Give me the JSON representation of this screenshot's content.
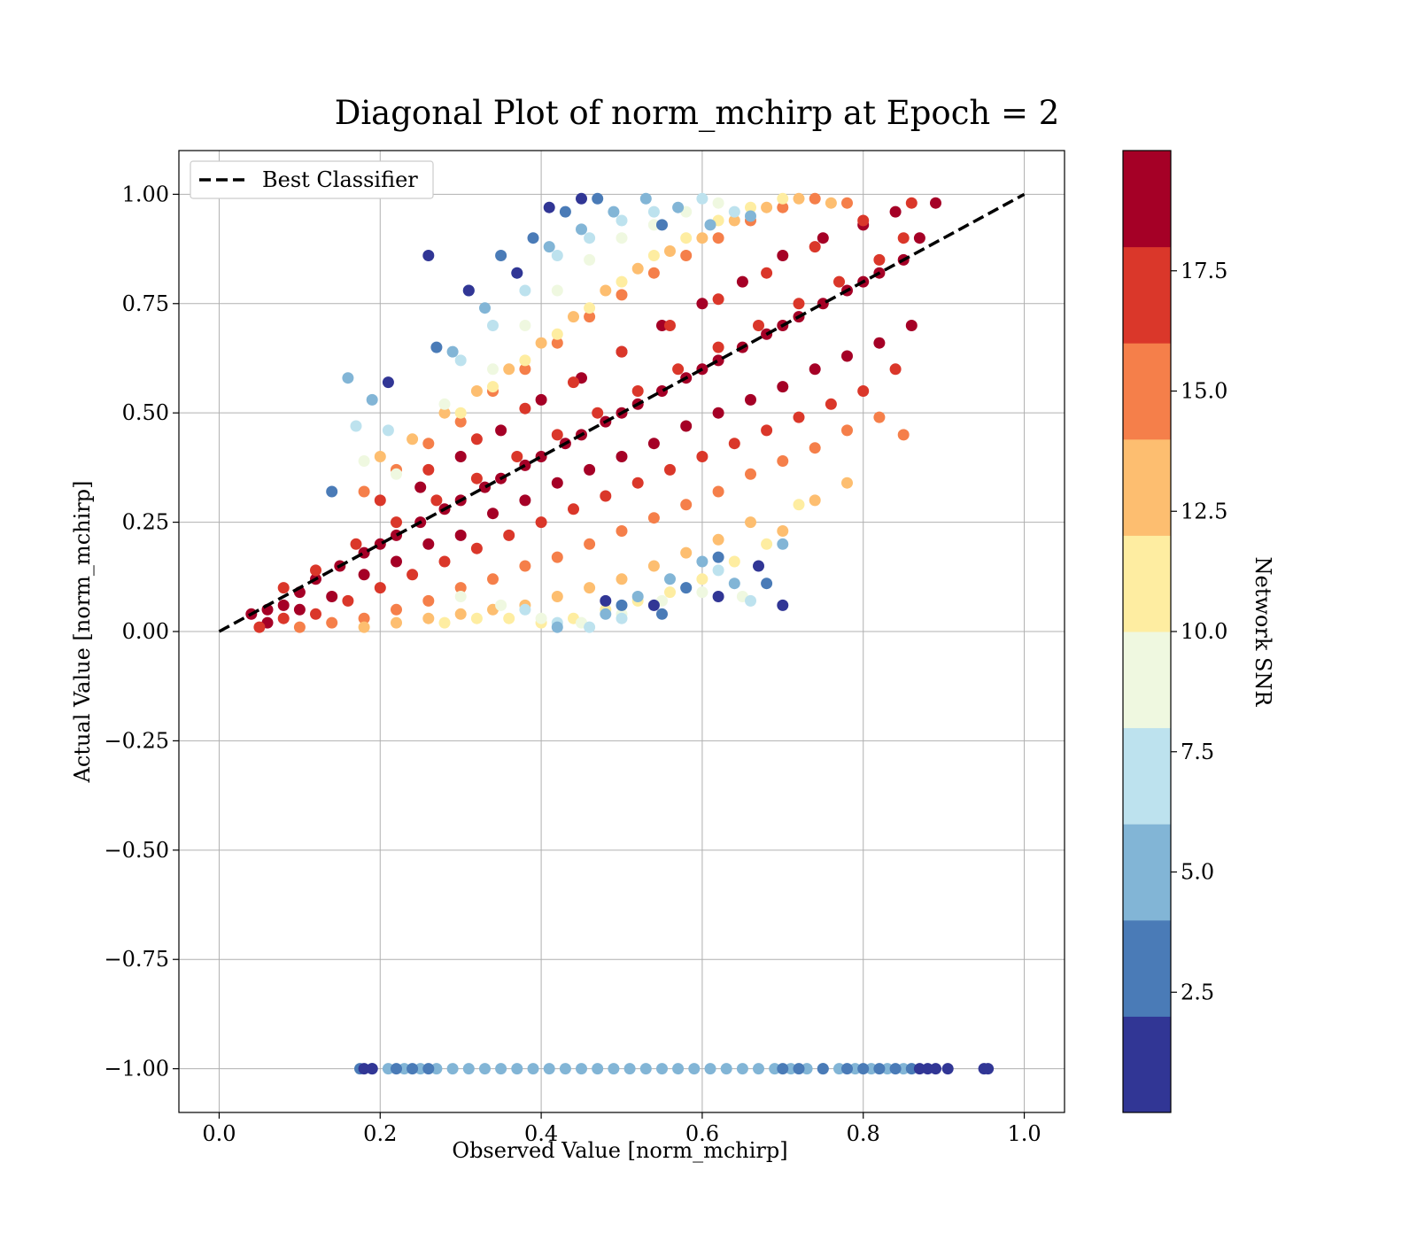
{
  "chart_data": {
    "type": "scatter",
    "title": "Diagonal Plot of norm_mchirp at Epoch = 2",
    "xlabel": "Observed Value [norm_mchirp]",
    "ylabel": "Actual Value [norm_mchirp]",
    "xlim": [
      -0.05,
      1.05
    ],
    "ylim": [
      -1.1,
      1.1
    ],
    "grid": true,
    "x_ticks": [
      0.0,
      0.2,
      0.4,
      0.6,
      0.8,
      1.0
    ],
    "x_tick_labels": [
      "0.0",
      "0.2",
      "0.4",
      "0.6",
      "0.8",
      "1.0"
    ],
    "y_ticks": [
      1.0,
      0.75,
      0.5,
      0.25,
      0.0,
      -0.25,
      -0.5,
      -0.75,
      -1.0
    ],
    "y_tick_labels": [
      "1.00",
      "0.75",
      "0.50",
      "0.25",
      "0.00",
      "−0.25",
      "−0.50",
      "−0.75",
      "−1.00"
    ],
    "legend": {
      "placement": "upper-left",
      "entries": [
        {
          "label": "Best Classifier",
          "style": "dashed",
          "color": "#000000"
        }
      ]
    },
    "reference_line": {
      "name": "Best Classifier",
      "x": [
        0.0,
        1.0
      ],
      "y": [
        0.0,
        1.0
      ],
      "style": "dashed",
      "color": "#000000"
    },
    "colorbar": {
      "label": "Network SNR",
      "range": [
        0.0,
        20.0
      ],
      "ticks": [
        2.5,
        5.0,
        7.5,
        10.0,
        12.5,
        15.0,
        17.5
      ],
      "tick_labels": [
        "2.5",
        "5.0",
        "7.5",
        "10.0",
        "12.5",
        "15.0",
        "17.5"
      ],
      "bins": [
        {
          "from": 0.0,
          "to": 2.0,
          "color": "#313695"
        },
        {
          "from": 2.0,
          "to": 4.0,
          "color": "#4a7bb7"
        },
        {
          "from": 4.0,
          "to": 6.0,
          "color": "#82b5d6"
        },
        {
          "from": 6.0,
          "to": 8.0,
          "color": "#bde2ee"
        },
        {
          "from": 8.0,
          "to": 10.0,
          "color": "#eff8e0"
        },
        {
          "from": 10.0,
          "to": 12.0,
          "color": "#feeda1"
        },
        {
          "from": 12.0,
          "to": 14.0,
          "color": "#fdbe70"
        },
        {
          "from": 14.0,
          "to": 16.0,
          "color": "#f57f4a"
        },
        {
          "from": 16.0,
          "to": 18.0,
          "color": "#da372a"
        },
        {
          "from": 18.0,
          "to": 20.0,
          "color": "#a50026"
        }
      ]
    },
    "series": [
      {
        "x": [
          0.04,
          0.06,
          0.08,
          0.1,
          0.12,
          0.15,
          0.18,
          0.2,
          0.22,
          0.25,
          0.28,
          0.3,
          0.33,
          0.35,
          0.38,
          0.4,
          0.43,
          0.45,
          0.48,
          0.5,
          0.52,
          0.55,
          0.58,
          0.6,
          0.62,
          0.65,
          0.68,
          0.7,
          0.72,
          0.75,
          0.78,
          0.8,
          0.82,
          0.85,
          0.87,
          0.89,
          0.06,
          0.1,
          0.14,
          0.18,
          0.22,
          0.26,
          0.3,
          0.34,
          0.38,
          0.42,
          0.46,
          0.5,
          0.54,
          0.58,
          0.62,
          0.66,
          0.7,
          0.74,
          0.78,
          0.82,
          0.86,
          0.25,
          0.3,
          0.35,
          0.4,
          0.45,
          0.5,
          0.55,
          0.6,
          0.65,
          0.7,
          0.75,
          0.8,
          0.84
        ],
        "y": [
          0.04,
          0.05,
          0.06,
          0.09,
          0.12,
          0.15,
          0.18,
          0.2,
          0.22,
          0.25,
          0.28,
          0.3,
          0.33,
          0.35,
          0.38,
          0.4,
          0.43,
          0.45,
          0.48,
          0.5,
          0.52,
          0.55,
          0.58,
          0.6,
          0.62,
          0.65,
          0.68,
          0.7,
          0.72,
          0.75,
          0.78,
          0.8,
          0.82,
          0.85,
          0.9,
          0.98,
          0.02,
          0.05,
          0.08,
          0.13,
          0.16,
          0.2,
          0.22,
          0.27,
          0.3,
          0.34,
          0.37,
          0.4,
          0.43,
          0.47,
          0.5,
          0.53,
          0.56,
          0.6,
          0.63,
          0.66,
          0.7,
          0.33,
          0.4,
          0.46,
          0.53,
          0.58,
          0.64,
          0.7,
          0.75,
          0.8,
          0.86,
          0.9,
          0.93,
          0.96
        ],
        "snr": [
          19,
          19,
          19,
          19,
          19,
          19,
          19,
          19,
          19,
          19,
          19,
          19,
          19,
          19,
          19,
          19,
          19,
          19,
          19,
          19,
          19,
          19,
          19,
          19,
          19,
          19,
          19,
          19,
          19,
          19,
          19,
          19,
          19,
          19,
          19,
          19,
          19,
          19,
          19,
          19,
          19,
          19,
          19,
          19,
          19,
          19,
          19,
          19,
          19,
          19,
          19,
          19,
          19,
          19,
          19,
          19,
          19,
          19,
          19,
          19,
          19,
          19,
          19,
          19,
          19,
          19,
          19,
          19,
          19,
          19
        ]
      },
      {
        "x": [
          0.05,
          0.08,
          0.12,
          0.16,
          0.2,
          0.24,
          0.28,
          0.32,
          0.36,
          0.4,
          0.44,
          0.48,
          0.52,
          0.56,
          0.6,
          0.64,
          0.68,
          0.72,
          0.76,
          0.8,
          0.84,
          0.08,
          0.12,
          0.17,
          0.22,
          0.27,
          0.32,
          0.37,
          0.42,
          0.47,
          0.52,
          0.57,
          0.62,
          0.67,
          0.72,
          0.77,
          0.82,
          0.85,
          0.2,
          0.26,
          0.32,
          0.38,
          0.44,
          0.5,
          0.56,
          0.62,
          0.68,
          0.74,
          0.8,
          0.86
        ],
        "y": [
          0.01,
          0.03,
          0.04,
          0.07,
          0.1,
          0.13,
          0.16,
          0.19,
          0.22,
          0.25,
          0.28,
          0.31,
          0.34,
          0.37,
          0.4,
          0.43,
          0.46,
          0.49,
          0.52,
          0.55,
          0.6,
          0.1,
          0.14,
          0.2,
          0.25,
          0.3,
          0.35,
          0.4,
          0.45,
          0.5,
          0.55,
          0.6,
          0.65,
          0.7,
          0.75,
          0.8,
          0.85,
          0.9,
          0.3,
          0.37,
          0.44,
          0.51,
          0.57,
          0.64,
          0.7,
          0.76,
          0.82,
          0.88,
          0.94,
          0.98
        ],
        "snr": [
          17,
          17,
          17,
          17,
          17,
          17,
          17,
          17,
          17,
          17,
          17,
          17,
          17,
          17,
          17,
          17,
          17,
          17,
          17,
          17,
          17,
          17,
          17,
          17,
          17,
          17,
          17,
          17,
          17,
          17,
          17,
          17,
          17,
          17,
          17,
          17,
          17,
          17,
          17,
          17,
          17,
          17,
          17,
          17,
          17,
          17,
          17,
          17,
          17,
          17
        ]
      },
      {
        "x": [
          0.1,
          0.14,
          0.18,
          0.22,
          0.26,
          0.3,
          0.34,
          0.38,
          0.42,
          0.46,
          0.5,
          0.54,
          0.58,
          0.62,
          0.66,
          0.7,
          0.74,
          0.78,
          0.82,
          0.85,
          0.18,
          0.22,
          0.26,
          0.3,
          0.34,
          0.38,
          0.42,
          0.46,
          0.5,
          0.54,
          0.58,
          0.62,
          0.66,
          0.7,
          0.74,
          0.78
        ],
        "y": [
          0.01,
          0.02,
          0.03,
          0.05,
          0.07,
          0.1,
          0.12,
          0.15,
          0.17,
          0.2,
          0.23,
          0.26,
          0.29,
          0.32,
          0.36,
          0.39,
          0.42,
          0.46,
          0.49,
          0.45,
          0.32,
          0.37,
          0.43,
          0.48,
          0.55,
          0.6,
          0.66,
          0.72,
          0.77,
          0.82,
          0.86,
          0.9,
          0.94,
          0.97,
          0.99,
          0.98
        ],
        "snr": [
          15,
          15,
          15,
          15,
          15,
          15,
          15,
          15,
          15,
          15,
          15,
          15,
          15,
          15,
          15,
          15,
          15,
          15,
          15,
          15,
          15,
          15,
          15,
          15,
          15,
          15,
          15,
          15,
          15,
          15,
          15,
          15,
          15,
          15,
          15,
          15
        ]
      },
      {
        "x": [
          0.18,
          0.22,
          0.26,
          0.3,
          0.34,
          0.38,
          0.42,
          0.46,
          0.5,
          0.54,
          0.58,
          0.62,
          0.66,
          0.7,
          0.74,
          0.78,
          0.2,
          0.24,
          0.28,
          0.32,
          0.36,
          0.4,
          0.44,
          0.48,
          0.52,
          0.56,
          0.6,
          0.64,
          0.68,
          0.72,
          0.76
        ],
        "y": [
          0.01,
          0.02,
          0.03,
          0.04,
          0.05,
          0.06,
          0.08,
          0.1,
          0.12,
          0.15,
          0.18,
          0.21,
          0.25,
          0.23,
          0.3,
          0.34,
          0.4,
          0.44,
          0.5,
          0.55,
          0.6,
          0.66,
          0.72,
          0.78,
          0.83,
          0.87,
          0.9,
          0.94,
          0.97,
          0.99,
          0.98
        ],
        "snr": [
          13,
          13,
          13,
          13,
          13,
          13,
          13,
          13,
          13,
          13,
          13,
          13,
          13,
          13,
          13,
          13,
          13,
          13,
          13,
          13,
          13,
          13,
          13,
          13,
          13,
          13,
          13,
          13,
          13,
          13,
          13
        ]
      },
      {
        "x": [
          0.28,
          0.32,
          0.36,
          0.4,
          0.44,
          0.48,
          0.52,
          0.56,
          0.6,
          0.64,
          0.68,
          0.72,
          0.3,
          0.34,
          0.38,
          0.42,
          0.46,
          0.5,
          0.54,
          0.58,
          0.62,
          0.66,
          0.7
        ],
        "y": [
          0.02,
          0.03,
          0.03,
          0.02,
          0.03,
          0.05,
          0.07,
          0.09,
          0.12,
          0.16,
          0.2,
          0.29,
          0.5,
          0.56,
          0.62,
          0.68,
          0.74,
          0.8,
          0.86,
          0.9,
          0.94,
          0.97,
          0.99
        ],
        "snr": [
          11,
          11,
          11,
          11,
          11,
          11,
          11,
          11,
          11,
          11,
          11,
          11,
          11,
          11,
          11,
          11,
          11,
          11,
          11,
          11,
          11,
          11,
          11
        ]
      },
      {
        "x": [
          0.3,
          0.35,
          0.4,
          0.45,
          0.5,
          0.55,
          0.6,
          0.65,
          0.18,
          0.22,
          0.28,
          0.34,
          0.38,
          0.42,
          0.46,
          0.5,
          0.54,
          0.58,
          0.62
        ],
        "y": [
          0.08,
          0.06,
          0.03,
          0.02,
          0.04,
          0.07,
          0.09,
          0.08,
          0.39,
          0.36,
          0.52,
          0.6,
          0.7,
          0.78,
          0.85,
          0.9,
          0.93,
          0.96,
          0.98
        ],
        "snr": [
          9,
          9,
          9,
          9,
          9,
          9,
          9,
          9,
          9,
          9,
          9,
          9,
          9,
          9,
          9,
          9,
          9,
          9,
          9
        ]
      },
      {
        "x": [
          0.38,
          0.42,
          0.46,
          0.5,
          0.54,
          0.58,
          0.62,
          0.66,
          0.17,
          0.21,
          0.3,
          0.34,
          0.38,
          0.42,
          0.46,
          0.5,
          0.54,
          0.6,
          0.64
        ],
        "y": [
          0.05,
          0.02,
          0.01,
          0.03,
          0.06,
          0.1,
          0.14,
          0.07,
          0.47,
          0.46,
          0.62,
          0.7,
          0.78,
          0.86,
          0.9,
          0.94,
          0.96,
          0.99,
          0.96
        ],
        "snr": [
          7,
          7,
          7,
          7,
          7,
          7,
          7,
          7,
          7,
          7,
          7,
          7,
          7,
          7,
          7,
          7,
          7,
          7,
          7
        ]
      },
      {
        "x": [
          0.42,
          0.48,
          0.52,
          0.56,
          0.6,
          0.64,
          0.7,
          0.16,
          0.19,
          0.29,
          0.33,
          0.37,
          0.41,
          0.45,
          0.49,
          0.53,
          0.57,
          0.61,
          0.66
        ],
        "y": [
          0.01,
          0.04,
          0.08,
          0.12,
          0.16,
          0.11,
          0.2,
          0.58,
          0.53,
          0.64,
          0.74,
          0.82,
          0.88,
          0.92,
          0.96,
          0.99,
          0.97,
          0.93,
          0.95
        ],
        "snr": [
          5,
          5,
          5,
          5,
          5,
          5,
          5,
          5,
          5,
          5,
          5,
          5,
          5,
          5,
          5,
          5,
          5,
          5,
          5
        ]
      },
      {
        "x": [
          0.5,
          0.55,
          0.58,
          0.62,
          0.68,
          0.14,
          0.27,
          0.31,
          0.35,
          0.39,
          0.43,
          0.47,
          0.55
        ],
        "y": [
          0.06,
          0.04,
          0.1,
          0.17,
          0.11,
          0.32,
          0.65,
          0.78,
          0.86,
          0.9,
          0.96,
          0.99,
          0.93
        ],
        "snr": [
          3,
          3,
          3,
          3,
          3,
          3,
          3,
          3,
          3,
          3,
          3,
          3,
          3
        ]
      },
      {
        "x": [
          0.48,
          0.54,
          0.62,
          0.67,
          0.7,
          0.21,
          0.26,
          0.31,
          0.37,
          0.41,
          0.45
        ],
        "y": [
          0.07,
          0.06,
          0.08,
          0.15,
          0.06,
          0.57,
          0.86,
          0.78,
          0.82,
          0.97,
          0.99
        ],
        "snr": [
          1,
          1,
          1,
          1,
          1,
          1,
          1,
          1,
          1,
          1,
          1
        ]
      },
      {
        "x": [
          0.21,
          0.23,
          0.25,
          0.27,
          0.29,
          0.31,
          0.33,
          0.35,
          0.37,
          0.39,
          0.41,
          0.43,
          0.45,
          0.47,
          0.49,
          0.51,
          0.53,
          0.55,
          0.57,
          0.59,
          0.61,
          0.63,
          0.65,
          0.67,
          0.69,
          0.71,
          0.73,
          0.75,
          0.77,
          0.79,
          0.81,
          0.83,
          0.85
        ],
        "y": [
          -1,
          -1,
          -1,
          -1,
          -1,
          -1,
          -1,
          -1,
          -1,
          -1,
          -1,
          -1,
          -1,
          -1,
          -1,
          -1,
          -1,
          -1,
          -1,
          -1,
          -1,
          -1,
          -1,
          -1,
          -1,
          -1,
          -1,
          -1,
          -1,
          -1,
          -1,
          -1,
          -1
        ],
        "snr": [
          5,
          5,
          5,
          5,
          5,
          5,
          5,
          5,
          5,
          5,
          5,
          5,
          5,
          5,
          5,
          5,
          5,
          5,
          5,
          5,
          5,
          5,
          5,
          5,
          5,
          5,
          5,
          5,
          5,
          5,
          5,
          5,
          5
        ]
      },
      {
        "x": [
          0.175,
          0.19,
          0.22,
          0.24,
          0.26,
          0.7,
          0.72,
          0.75,
          0.78,
          0.8,
          0.82,
          0.84,
          0.86
        ],
        "y": [
          -1,
          -1,
          -1,
          -1,
          -1,
          -1,
          -1,
          -1,
          -1,
          -1,
          -1,
          -1,
          -1
        ],
        "snr": [
          3,
          3,
          3,
          3,
          3,
          3,
          3,
          3,
          3,
          3,
          3,
          3,
          3
        ]
      },
      {
        "x": [
          0.18,
          0.19,
          0.87,
          0.88,
          0.89,
          0.905,
          0.95,
          0.955
        ],
        "y": [
          -1,
          -1,
          -1,
          -1,
          -1,
          -1,
          -1,
          -1
        ],
        "snr": [
          1,
          1,
          1,
          1,
          1,
          1,
          1,
          1
        ]
      }
    ]
  }
}
